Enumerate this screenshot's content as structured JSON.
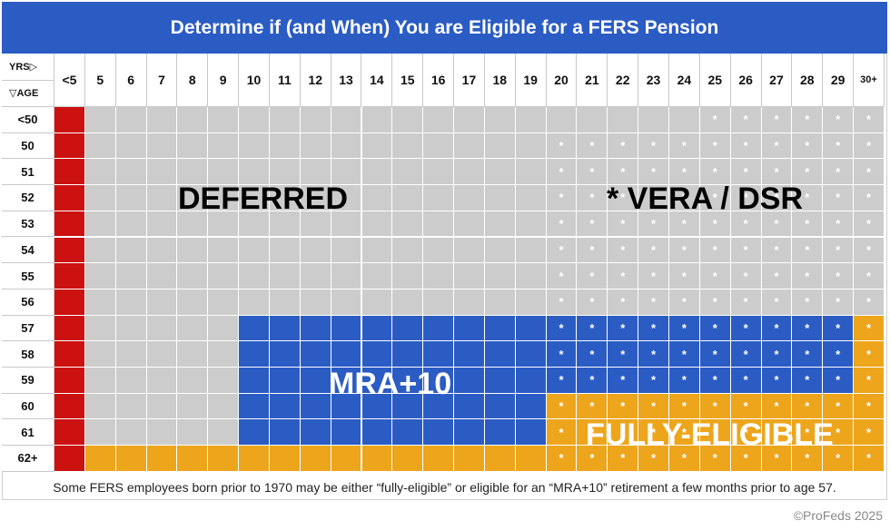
{
  "title": "Determine if (and When) You are Eligible for a FERS Pension",
  "corner": {
    "yrs_label": "YRS▷",
    "age_label": "▽AGE"
  },
  "columns": [
    "<5",
    "5",
    "6",
    "7",
    "8",
    "9",
    "10",
    "11",
    "12",
    "13",
    "14",
    "15",
    "16",
    "17",
    "18",
    "19",
    "20",
    "21",
    "22",
    "23",
    "24",
    "25",
    "26",
    "27",
    "28",
    "29",
    "30+"
  ],
  "rows": [
    "<50",
    "50",
    "51",
    "52",
    "53",
    "54",
    "55",
    "56",
    "57",
    "58",
    "59",
    "60",
    "61",
    "62+"
  ],
  "regions": {
    "deferred": "DEFERRED",
    "vera": "* VERA / DSR",
    "mra10": "MRA+10",
    "fully": "FULLY-ELIGIBLE"
  },
  "star_symbol": "*",
  "footnote": "Some FERS employees born prior to 1970 may be either “fully-eligible” or eligible for an “MRA+10” retirement a few months prior to age 57.",
  "copyright": "©ProFeds 2025",
  "colors": {
    "header_blue": "#2b5cc4",
    "red": "#cc1111",
    "gray": "#cccccc",
    "blue": "#2b5cc4",
    "orange": "#eda51c"
  }
}
